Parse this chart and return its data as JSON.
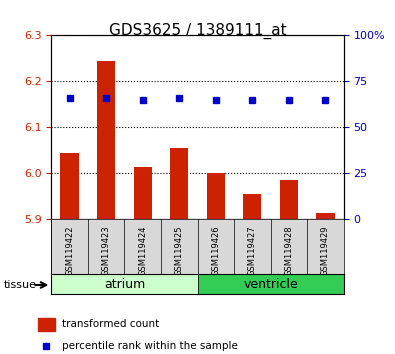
{
  "title": "GDS3625 / 1389111_at",
  "samples": [
    "GSM119422",
    "GSM119423",
    "GSM119424",
    "GSM119425",
    "GSM119426",
    "GSM119427",
    "GSM119428",
    "GSM119429"
  ],
  "transformed_counts": [
    6.045,
    6.245,
    6.015,
    6.055,
    6.002,
    5.955,
    5.985,
    5.915
  ],
  "percentile_ranks": [
    66,
    66,
    65,
    66,
    65,
    65,
    65,
    65
  ],
  "ylim_left": [
    5.9,
    6.3
  ],
  "ylim_right": [
    0,
    100
  ],
  "yticks_left": [
    5.9,
    6.0,
    6.1,
    6.2,
    6.3
  ],
  "yticks_right": [
    0,
    25,
    50,
    75,
    100
  ],
  "yticklabels_right": [
    "0",
    "25",
    "50",
    "75",
    "100%"
  ],
  "groups": [
    {
      "label": "atrium",
      "samples": [
        0,
        1,
        2,
        3
      ],
      "color": "#90ee90"
    },
    {
      "label": "ventricle",
      "samples": [
        4,
        5,
        6,
        7
      ],
      "color": "#00cc44"
    }
  ],
  "bar_color": "#cc2200",
  "dot_color": "#0000cc",
  "bar_bottom": 5.9,
  "grid_color": "#000000",
  "bg_color": "#ffffff",
  "tick_color_left": "#cc2200",
  "tick_color_right": "#0000cc",
  "legend_bar_label": "transformed count",
  "legend_dot_label": "percentile rank within the sample",
  "tissue_label": "tissue",
  "atrium_light_color": "#ccffcc",
  "atrium_dark_color": "#66dd66",
  "ventricle_dark_color": "#33cc55"
}
